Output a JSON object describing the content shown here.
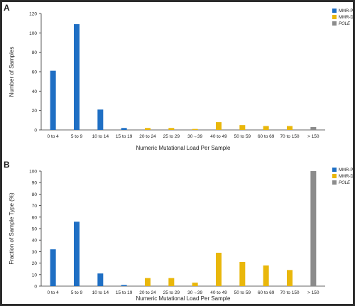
{
  "chart_data": [
    {
      "panel_label": "A",
      "type": "bar",
      "categories": [
        "0 to 4",
        "5 to 9",
        "10 to 14",
        "15 to 19",
        "20 to 24",
        "25 to 29",
        "30→39",
        "40 to 49",
        "50 to 59",
        "60 to 69",
        "70 to 150",
        "> 150"
      ],
      "series": [
        {
          "name": "MMR-P",
          "color": "#1f6fc4",
          "values": [
            61,
            109,
            21,
            2,
            0,
            0,
            0,
            0,
            0,
            0,
            0,
            0
          ]
        },
        {
          "name": "MMR-D",
          "color": "#e9b70b",
          "values": [
            0,
            0,
            0,
            0,
            2,
            2,
            1,
            8,
            5,
            4,
            4,
            0
          ]
        },
        {
          "name": "POLE",
          "color": "#8c8c8c",
          "values": [
            0,
            0,
            0,
            0,
            0,
            0,
            0,
            0,
            0,
            0,
            0,
            3
          ]
        }
      ],
      "xlabel": "Numeric Mutational Load Per Sample",
      "ylabel": "Number of Samples",
      "ylim": [
        0,
        120
      ],
      "yticks": [
        0,
        20,
        40,
        60,
        80,
        100,
        120
      ],
      "legend_position": "top-right"
    },
    {
      "panel_label": "B",
      "type": "bar",
      "categories": [
        "0 to 4",
        "5 to 9",
        "10 to 14",
        "15 to 19",
        "20 to 24",
        "25 to 29",
        "30→39",
        "40 to 49",
        "50 to 59",
        "60 to 69",
        "70 to 150",
        "> 150"
      ],
      "series": [
        {
          "name": "MMR-P",
          "color": "#1f6fc4",
          "values": [
            32,
            56,
            11,
            1,
            0,
            0,
            0,
            0,
            0,
            0,
            0,
            0
          ]
        },
        {
          "name": "MMR-D",
          "color": "#e9b70b",
          "values": [
            0,
            0,
            0,
            0,
            7,
            7,
            3,
            29,
            21,
            18,
            14,
            0
          ]
        },
        {
          "name": "POLE",
          "color": "#8c8c8c",
          "values": [
            0,
            0,
            0,
            0,
            0,
            0,
            0,
            0,
            0,
            0,
            0,
            100
          ]
        }
      ],
      "xlabel": "Numeric Mutational Load Per Sample",
      "ylabel": "Fraction of Sample Type (%)",
      "ylim": [
        0,
        100
      ],
      "yticks": [
        0,
        10,
        20,
        30,
        40,
        50,
        60,
        70,
        80,
        90,
        100
      ],
      "legend_position": "top-right"
    }
  ]
}
